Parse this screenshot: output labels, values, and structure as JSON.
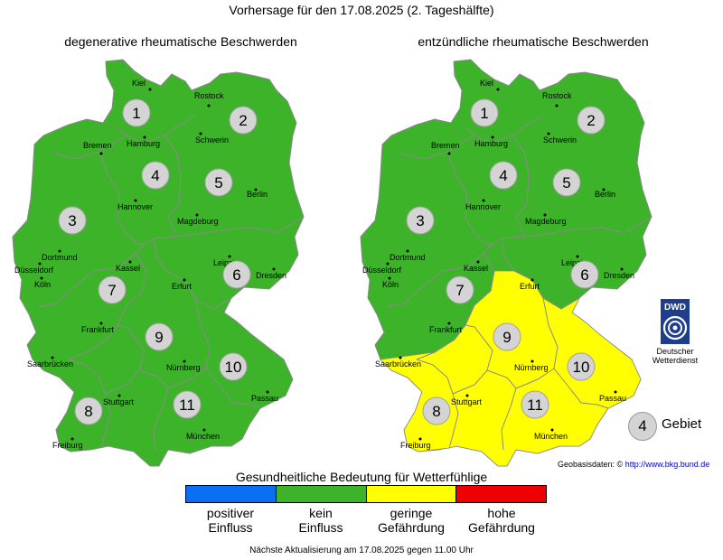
{
  "header": {
    "title": "Vorhersage für den 17.08.2025 (2. Tageshälfte)"
  },
  "maps": [
    {
      "title": "degenerative rheumatische Beschwerden",
      "region_levels": {
        "1": "kein Einfluss",
        "2": "kein Einfluss",
        "3": "kein Einfluss",
        "4": "kein Einfluss",
        "5": "kein Einfluss",
        "6": "kein Einfluss",
        "7": "kein Einfluss",
        "8": "kein Einfluss",
        "9": "kein Einfluss",
        "10": "kein Einfluss",
        "11": "kein Einfluss"
      }
    },
    {
      "title": "entzündliche rheumatische Beschwerden",
      "region_levels": {
        "1": "kein Einfluss",
        "2": "kein Einfluss",
        "3": "kein Einfluss",
        "4": "kein Einfluss",
        "5": "kein Einfluss",
        "6": "kein Einfluss",
        "7": "kein Einfluss",
        "8": "geringe Gefährdung",
        "9": "geringe Gefährdung",
        "10": "geringe Gefährdung",
        "11": "geringe Gefährdung"
      }
    }
  ],
  "region_numbers": [
    "1",
    "2",
    "3",
    "4",
    "5",
    "6",
    "7",
    "8",
    "9",
    "10",
    "11"
  ],
  "cities": [
    "Kiel",
    "Rostock",
    "Hamburg",
    "Schwerin",
    "Bremen",
    "Hannover",
    "Berlin",
    "Magdeburg",
    "Dortmund",
    "Düsseldorf",
    "Köln",
    "Kassel",
    "Leipzig",
    "Dresden",
    "Erfurt",
    "Frankfurt",
    "Saarbrücken",
    "Nürnberg",
    "Passau",
    "Stuttgart",
    "München",
    "Freiburg"
  ],
  "legend": {
    "title": "Gesundheitliche Bedeutung für Wetterfühlige",
    "items": [
      {
        "line1": "positiver",
        "line2": "Einfluss",
        "color": "#0a6ef2"
      },
      {
        "line1": "kein",
        "line2": "Einfluss",
        "color": "#3db32a"
      },
      {
        "line1": "geringe",
        "line2": "Gefährdung",
        "color": "#ffff00"
      },
      {
        "line1": "hohe",
        "line2": "Gefährdung",
        "color": "#ee0000"
      }
    ]
  },
  "gebiet_key": {
    "number": "4",
    "label": "Gebiet"
  },
  "geodata": {
    "label": "Geobasisdaten: ©",
    "link": "http://www.bkg.bund.de"
  },
  "dwd": {
    "abbr": "DWD",
    "line1": "Deutscher",
    "line2": "Wetterdienst"
  },
  "footer": "Nächste Aktualisierung am 17.08.2025 gegen 11.00 Uhr",
  "colors": {
    "green": "#3db32a",
    "yellow": "#ffff00",
    "border": "#8a8a8a",
    "circle": "#d4d4d4"
  }
}
